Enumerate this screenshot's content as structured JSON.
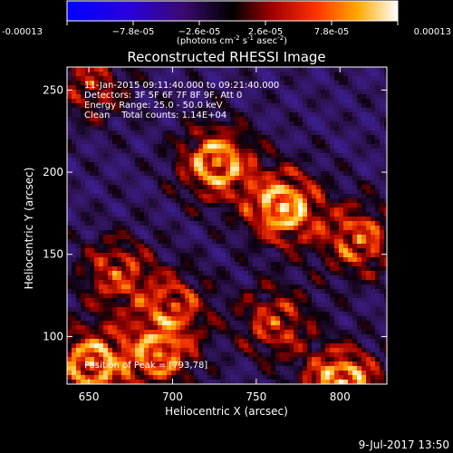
{
  "chart_data": {
    "type": "heatmap",
    "title": "Reconstructed RHESSI Image",
    "xlabel": "Heliocentric X (arcsec)",
    "ylabel": "Heliocentric Y (arcsec)",
    "xlim": [
      637,
      828
    ],
    "ylim": [
      71,
      264
    ],
    "xticks": [
      650,
      700,
      750,
      800
    ],
    "yticks": [
      100,
      150,
      200,
      250
    ],
    "colorbar": {
      "colormap": "hot-blue",
      "min": -0.00013,
      "max": 0.00013,
      "ticks": [
        "-0.00013",
        "−7.8e-05",
        "−2.6e-05",
        "2.6e-05",
        "7.8e-05",
        "0.00013"
      ],
      "tick_values": [
        -0.00013,
        -7.8e-05,
        -2.6e-05,
        2.6e-05,
        7.8e-05,
        0.00013
      ],
      "unit_label": "(photons cm",
      "unit_sup1": "-2",
      "unit_mid": " s",
      "unit_sup2": "-1",
      "unit_end": " asec",
      "unit_sup3": "-2",
      "unit_close": ")"
    },
    "annotations": {
      "time_range": "11-Jan-2015 09:11:40.000 to 09:21:40.000",
      "detectors": "Detectors: 3F 5F 6F 7F 8F 9F, Att 0",
      "energy": "Energy Range: 25.0 - 50.0 keV",
      "method": "Clean    Total counts: 1.14E+04",
      "peak": "Position of Peak = [793,78]"
    },
    "hot_spots": [
      {
        "x": 765,
        "y": 180,
        "level": 0.98
      },
      {
        "x": 800,
        "y": 72,
        "level": 1.0
      },
      {
        "x": 725,
        "y": 207,
        "level": 0.9
      },
      {
        "x": 650,
        "y": 85,
        "level": 0.85
      },
      {
        "x": 810,
        "y": 160,
        "level": 0.7
      },
      {
        "x": 665,
        "y": 140,
        "level": 0.6
      },
      {
        "x": 700,
        "y": 120,
        "level": 0.55
      },
      {
        "x": 650,
        "y": 255,
        "level": 0.5
      },
      {
        "x": 760,
        "y": 110,
        "level": 0.6
      },
      {
        "x": 690,
        "y": 90,
        "level": 0.7
      }
    ]
  },
  "footer": {
    "date": "9-Jul-2017 13:50"
  }
}
